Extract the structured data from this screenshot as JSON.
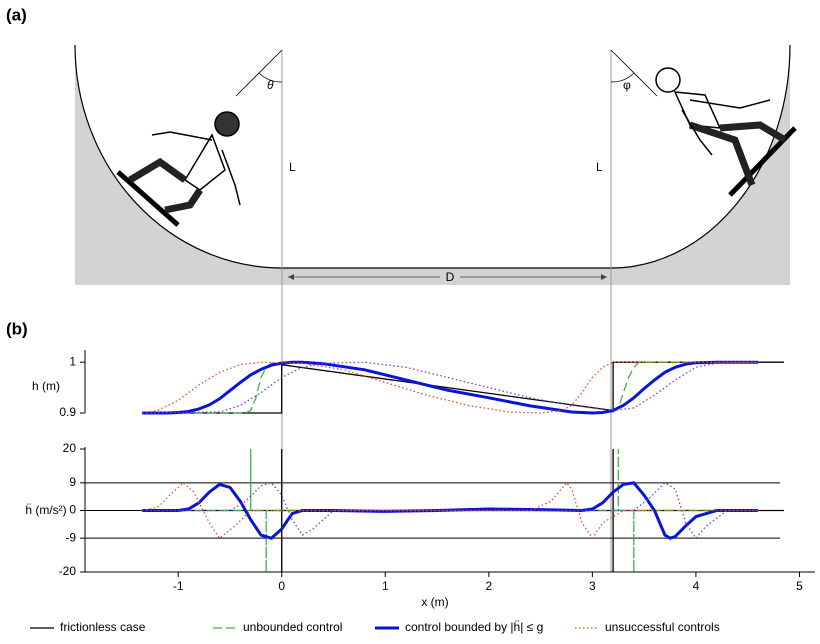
{
  "panels": [
    "(a)",
    "(b)"
  ],
  "diagram": {
    "theta": "θ",
    "phi": "φ",
    "left_length": "L",
    "right_length": "L",
    "distance": "D"
  },
  "chart_data": [
    {
      "type": "line",
      "ylabel": "h (m)",
      "xlim": [
        -1.9,
        5.15
      ],
      "ylim": [
        0.9,
        1.02
      ],
      "yticks": [
        0.9,
        1
      ],
      "series": [
        {
          "name": "frictionless case",
          "color": "#000000",
          "style": "solid",
          "linewidth": 1.3,
          "x": [
            -1.35,
            0,
            0,
            3.2,
            3.2,
            4.85
          ],
          "values": [
            0.9,
            0.9,
            0.995,
            0.905,
            1,
            1
          ]
        },
        {
          "name": "unbounded control",
          "color": "#3cb34a",
          "style": "dashed",
          "linewidth": 1.3,
          "x": [
            -1.35,
            -0.35,
            -0.3,
            -0.25,
            -0.2,
            -0.15,
            -0.1,
            0,
            0.2,
            0.4,
            0.8,
            1.2,
            1.6,
            2.0,
            2.4,
            2.8,
            3.0,
            3.2,
            3.25,
            3.3,
            3.35,
            3.4,
            3.45,
            4.6
          ],
          "values": [
            0.9,
            0.9,
            0.905,
            0.93,
            0.97,
            0.99,
            0.998,
            1,
            1,
            0.997,
            0.985,
            0.965,
            0.945,
            0.93,
            0.914,
            0.902,
            0.9,
            0.902,
            0.91,
            0.94,
            0.97,
            0.99,
            1,
            1
          ]
        },
        {
          "name": "control bounded by |ḧ| ≤ g",
          "color": "#0a14d8",
          "style": "solid",
          "linewidth": 3,
          "x": [
            -1.35,
            -1.1,
            -1.0,
            -0.9,
            -0.8,
            -0.7,
            -0.6,
            -0.5,
            -0.4,
            -0.3,
            -0.2,
            -0.1,
            0,
            0.1,
            0.2,
            0.4,
            0.8,
            1.2,
            1.6,
            2.0,
            2.4,
            2.8,
            3.0,
            3.1,
            3.2,
            3.3,
            3.4,
            3.5,
            3.6,
            3.7,
            3.8,
            3.9,
            4.0,
            4.2,
            4.6
          ],
          "values": [
            0.9,
            0.9,
            0.901,
            0.903,
            0.908,
            0.916,
            0.928,
            0.944,
            0.96,
            0.975,
            0.986,
            0.994,
            0.998,
            1,
            1,
            0.997,
            0.985,
            0.965,
            0.945,
            0.93,
            0.914,
            0.902,
            0.9,
            0.901,
            0.905,
            0.915,
            0.93,
            0.948,
            0.965,
            0.98,
            0.99,
            0.996,
            0.999,
            1,
            1
          ]
        },
        {
          "name": "unsuccessful controls",
          "color": "#e8501a",
          "style": "dotted",
          "linewidth": 1.3,
          "x": [
            -1.35,
            -1.2,
            -1.0,
            -0.8,
            -0.6,
            -0.4,
            -0.2,
            0.2,
            0.6,
            1.0,
            1.4,
            1.8,
            2.2,
            2.5,
            2.7,
            2.8,
            2.9,
            3.0,
            3.1,
            3.2,
            3.4,
            4.6
          ],
          "values": [
            0.9,
            0.905,
            0.925,
            0.955,
            0.98,
            0.995,
            1,
            0.998,
            0.985,
            0.96,
            0.935,
            0.915,
            0.902,
            0.9,
            0.905,
            0.915,
            0.94,
            0.97,
            0.99,
            1,
            1,
            1
          ]
        },
        {
          "name": "unsuccessful controls",
          "color": "#7a3fd0",
          "style": "dotted",
          "linewidth": 1.3,
          "x": [
            -1.35,
            -0.6,
            -0.4,
            -0.2,
            0,
            0.2,
            0.4,
            0.8,
            1.2,
            1.6,
            2.0,
            2.4,
            2.8,
            3.2,
            3.4,
            3.6,
            3.8,
            4.0,
            4.2,
            4.6
          ],
          "values": [
            0.9,
            0.902,
            0.915,
            0.94,
            0.97,
            0.99,
            0.998,
            1,
            0.99,
            0.97,
            0.95,
            0.93,
            0.915,
            0.905,
            0.91,
            0.935,
            0.965,
            0.99,
            0.998,
            1
          ]
        }
      ]
    },
    {
      "type": "line",
      "ylabel": "ḧ (m/s²)",
      "xlabel": "x (m)",
      "xlim": [
        -1.9,
        5.15
      ],
      "xticks": [
        -1,
        0,
        1,
        2,
        3,
        4,
        5
      ],
      "ylim": [
        -20,
        20
      ],
      "yticks": [
        -20,
        -9,
        0,
        9,
        20
      ],
      "reference_lines": [
        9,
        0,
        -9
      ],
      "series": [
        {
          "name": "frictionless case",
          "color": "#000000",
          "style": "solid",
          "linewidth": 1.3,
          "x": [
            -1.35,
            0,
            0,
            0,
            0,
            3.2,
            3.2,
            3.2,
            3.2,
            4.85
          ],
          "values": [
            0,
            0,
            20,
            -20,
            0,
            0,
            20,
            -20,
            0,
            0
          ]
        },
        {
          "name": "unbounded control",
          "color": "#3cb34a",
          "style": "dashed",
          "linewidth": 1.3,
          "x": [
            -1.35,
            -0.3,
            -0.3,
            -0.3,
            -0.15,
            -0.15,
            -0.15,
            3.25,
            3.25,
            3.25,
            3.4,
            3.4,
            3.4,
            4.6
          ],
          "values": [
            0,
            0,
            20,
            0,
            0,
            -20,
            0,
            0,
            20,
            0,
            0,
            -20,
            0,
            0
          ]
        },
        {
          "name": "control bounded by |ḧ| ≤ g",
          "color": "#0a14d8",
          "style": "solid",
          "linewidth": 3,
          "x": [
            -1.35,
            -1.0,
            -0.9,
            -0.8,
            -0.7,
            -0.6,
            -0.5,
            -0.4,
            -0.3,
            -0.2,
            -0.1,
            0,
            0.1,
            0.2,
            0.5,
            1,
            1.5,
            2,
            2.5,
            2.9,
            3.0,
            3.1,
            3.2,
            3.3,
            3.4,
            3.5,
            3.6,
            3.7,
            3.75,
            3.8,
            3.9,
            4.0,
            4.2,
            4.6
          ],
          "values": [
            0,
            0,
            0.5,
            2.5,
            6,
            8.5,
            7.5,
            3,
            -3,
            -8,
            -9,
            -6,
            -1,
            0,
            0,
            -0.3,
            0,
            0.5,
            0.3,
            0,
            0.5,
            2.5,
            6,
            8.5,
            9,
            5,
            0,
            -8,
            -9,
            -8.5,
            -5,
            -2,
            0,
            0
          ]
        },
        {
          "name": "unsuccessful controls",
          "color": "#e8501a",
          "style": "dotted",
          "linewidth": 1.3,
          "x": [
            -1.35,
            -1.2,
            -1.05,
            -0.95,
            -0.85,
            -0.7,
            -0.6,
            -0.45,
            -0.3,
            2.4,
            2.6,
            2.7,
            2.75,
            2.8,
            2.9,
            3.0,
            3.1,
            3.3,
            4.6
          ],
          "values": [
            0,
            1,
            6,
            9,
            6,
            -4,
            -9,
            -5,
            0,
            0,
            3,
            7,
            9,
            7,
            -4,
            -9,
            -4,
            0,
            0
          ]
        },
        {
          "name": "unsuccessful controls",
          "color": "#7a3fd0",
          "style": "dotted",
          "linewidth": 1.3,
          "x": [
            -1.35,
            -0.5,
            -0.35,
            -0.2,
            -0.1,
            0,
            0.1,
            0.2,
            0.3,
            0.5,
            3.4,
            3.55,
            3.7,
            3.8,
            3.9,
            4.0,
            4.1,
            4.3,
            4.6
          ],
          "values": [
            0,
            0,
            3,
            8,
            9,
            5,
            -3,
            -8,
            -6,
            0,
            0,
            4,
            9,
            7,
            -4,
            -9,
            -5,
            0,
            0
          ]
        }
      ]
    }
  ]
}
